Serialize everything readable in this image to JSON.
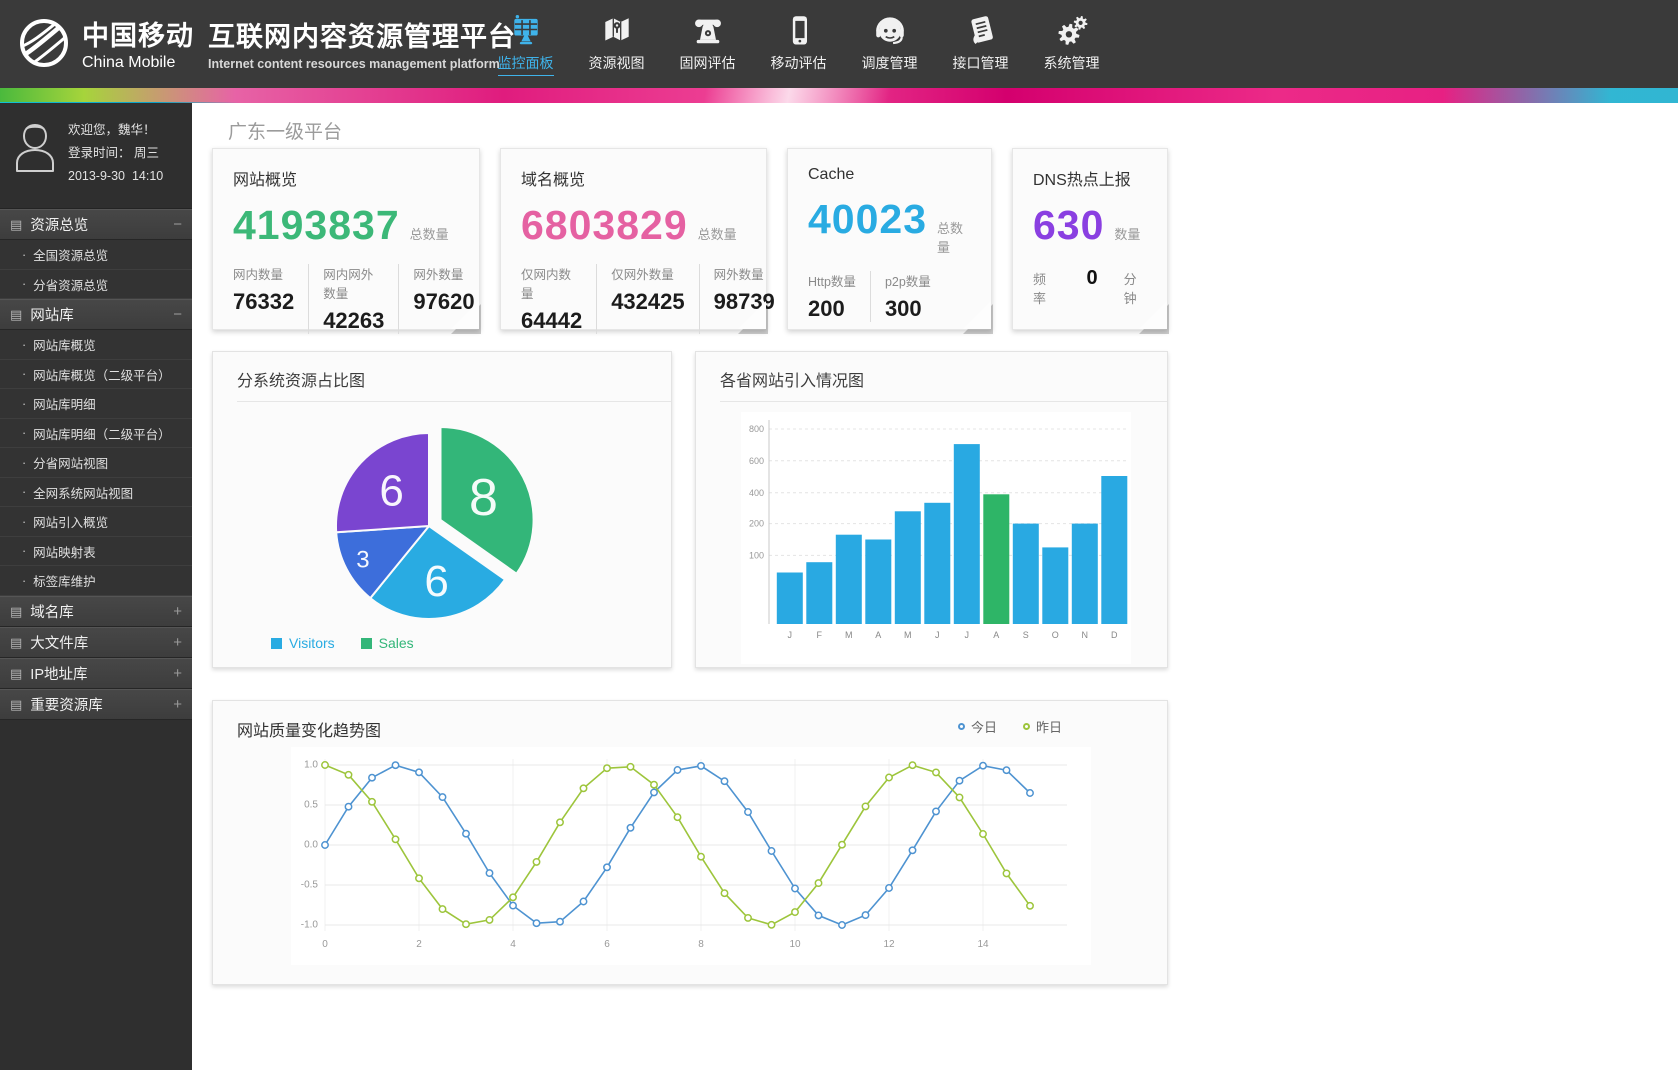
{
  "header": {
    "logo_cn": "中国移动",
    "logo_en": "China Mobile",
    "title": "互联网内容资源管理平台",
    "subtitle": "Internet content resources management platform",
    "accent_color": "#29abe2",
    "nav": [
      {
        "label": "监控面板",
        "icon": "monitor-icon",
        "active": true
      },
      {
        "label": "资源视图",
        "icon": "map-icon",
        "active": false
      },
      {
        "label": "固网评估",
        "icon": "phone-icon",
        "active": false
      },
      {
        "label": "移动评估",
        "icon": "mobile-icon",
        "active": false
      },
      {
        "label": "调度管理",
        "icon": "headset-icon",
        "active": false
      },
      {
        "label": "接口管理",
        "icon": "interface-icon",
        "active": false
      },
      {
        "label": "系统管理",
        "icon": "gears-icon",
        "active": false
      }
    ]
  },
  "sidebar": {
    "user": {
      "welcome": "欢迎您，魏华！",
      "login_label": "登录时间：",
      "login_day": "周三",
      "login_date": "2013-9-30",
      "login_time": "14:10"
    },
    "sections": [
      {
        "label": "资源总览",
        "toggle": "−",
        "expanded": true,
        "items": [
          "全国资源总览",
          "分省资源总览"
        ]
      },
      {
        "label": "网站库",
        "toggle": "−",
        "expanded": true,
        "items": [
          "网站库概览",
          "网站库概览（二级平台）",
          "网站库明细",
          "网站库明细（二级平台）",
          "分省网站视图",
          "全网系统网站视图",
          "网站引入概览",
          "网站映射表",
          "标签库维护"
        ]
      },
      {
        "label": "域名库",
        "toggle": "+",
        "expanded": false,
        "items": []
      },
      {
        "label": "大文件库",
        "toggle": "+",
        "expanded": false,
        "items": []
      },
      {
        "label": "IP地址库",
        "toggle": "+",
        "expanded": false,
        "items": []
      },
      {
        "label": "重要资源库",
        "toggle": "+",
        "expanded": false,
        "items": []
      }
    ]
  },
  "main": {
    "page_title": "广东一级平台",
    "stat_cards": [
      {
        "title": "网站概览",
        "big": "4193837",
        "big_color": "#3cb878",
        "big_label": "总数量",
        "subs": [
          {
            "label": "网内数量",
            "value": "76332"
          },
          {
            "label": "网内网外数量",
            "value": "42263"
          },
          {
            "label": "网外数量",
            "value": "97620"
          }
        ]
      },
      {
        "title": "域名概览",
        "big": "6803829",
        "big_color": "#e561a2",
        "big_label": "总数量",
        "subs": [
          {
            "label": "仅网内数量",
            "value": "64442"
          },
          {
            "label": "仅网外数量",
            "value": "432425"
          },
          {
            "label": "网外数量",
            "value": "98739"
          }
        ]
      },
      {
        "title": "Cache",
        "big": "40023",
        "big_color": "#29abe2",
        "big_label": "总数量",
        "subs": [
          {
            "label": "Http数量",
            "value": "200"
          },
          {
            "label": "p2p数量",
            "value": "300"
          }
        ]
      },
      {
        "title": "DNS热点上报",
        "big": "630",
        "big_color": "#8a3fe1",
        "big_label": "数量",
        "subs": [
          {
            "label": "频率",
            "value": "0",
            "suffix": "分钟"
          }
        ]
      }
    ]
  },
  "chart_data": [
    {
      "type": "pie",
      "title": "分系统资源占比图",
      "slices": [
        {
          "label": "8",
          "value": 8,
          "color": "#33b679",
          "exploded": true
        },
        {
          "label": "6",
          "value": 6,
          "color": "#29abe2",
          "exploded": false
        },
        {
          "label": "3",
          "value": 3,
          "color": "#3d6edb",
          "exploded": false
        },
        {
          "label": "6",
          "value": 6,
          "color": "#7a45d0",
          "exploded": false
        }
      ],
      "start_angle_deg": 0,
      "legend": [
        {
          "label": "Visitors",
          "color": "#29abe2"
        },
        {
          "label": "Sales",
          "color": "#33b679"
        }
      ]
    },
    {
      "type": "bar",
      "title": "各省网站引入情况图",
      "categories": [
        "J",
        "F",
        "M",
        "A",
        "M",
        "J",
        "J",
        "A",
        "S",
        "O",
        "N",
        "D"
      ],
      "values": [
        75,
        90,
        165,
        150,
        280,
        335,
        705,
        390,
        200,
        125,
        200,
        505
      ],
      "bar_color": "#29a9e2",
      "highlight_index": 7,
      "highlight_color": "#2eb567",
      "y_ticks": [
        800,
        600,
        400,
        200,
        100
      ],
      "ylim": [
        0,
        800
      ],
      "grid": true
    },
    {
      "type": "line",
      "title": "网站质量变化趋势图",
      "legend": [
        {
          "label": "今日",
          "color": "#4e93d1"
        },
        {
          "label": "昨日",
          "color": "#9dc53c"
        }
      ],
      "x_ticks": [
        0,
        2,
        4,
        6,
        8,
        10,
        12,
        14
      ],
      "y_ticks": [
        1.0,
        0.5,
        0.0,
        -0.5,
        -1.0
      ],
      "ylim": [
        -1.1,
        1.1
      ],
      "grid": true,
      "x": [
        0,
        0.5,
        1,
        1.5,
        2,
        2.5,
        3,
        3.5,
        4,
        4.5,
        5,
        5.5,
        6,
        6.5,
        7,
        7.5,
        8,
        8.5,
        9,
        9.5,
        10,
        10.5,
        11,
        11.5,
        12,
        12.5,
        13,
        13.5,
        14,
        14.5,
        15
      ],
      "series": [
        {
          "name": "今日",
          "color": "#4e93d1",
          "y": [
            0,
            0.479,
            0.841,
            0.997,
            0.909,
            0.599,
            0.141,
            -0.351,
            -0.757,
            -0.978,
            -0.959,
            -0.706,
            -0.279,
            0.215,
            0.657,
            0.938,
            0.989,
            0.798,
            0.412,
            -0.075,
            -0.544,
            -0.88,
            -1,
            -0.876,
            -0.537,
            -0.066,
            0.42,
            0.804,
            0.991,
            0.935,
            0.65
          ]
        },
        {
          "name": "昨日",
          "color": "#9dc53c",
          "y": [
            1,
            0.878,
            0.54,
            0.071,
            -0.416,
            -0.801,
            -0.99,
            -0.936,
            -0.654,
            -0.211,
            0.284,
            0.709,
            0.96,
            0.977,
            0.754,
            0.347,
            -0.146,
            -0.602,
            -0.911,
            -0.997,
            -0.839,
            -0.476,
            0.004,
            0.482,
            0.844,
            0.998,
            0.908,
            0.595,
            0.137,
            -0.355,
            -0.76
          ]
        }
      ]
    }
  ]
}
